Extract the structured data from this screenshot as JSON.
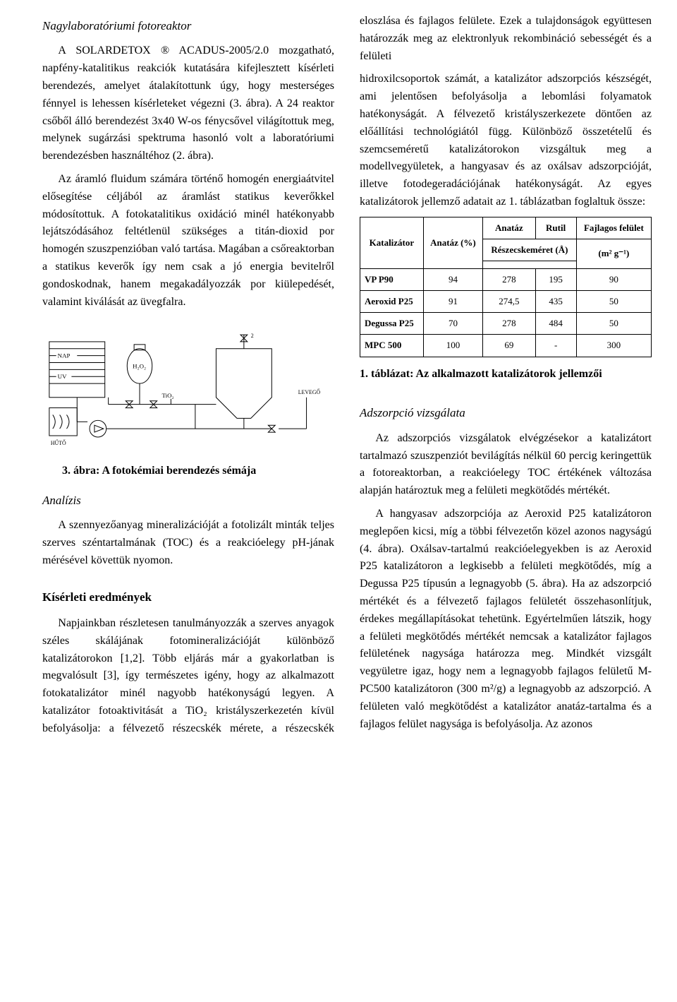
{
  "left": {
    "section1_title": "Nagylaboratóriumi fotoreaktor",
    "para1": "A SOLARDETOX ® ACADUS-2005/2.0 mozgatható, napfény-katalitikus reakciók kutatására kifejlesztett kísérleti berendezés, amelyet átalakítottunk úgy, hogy mesterséges fénnyel is lehessen kísérleteket végezni (3. ábra). A 24 reaktor csőből álló berendezést 3x40 W-os fénycsővel világítottuk meg, melynek sugárzási spektruma hasonló volt a laboratóriumi berendezésben használtéhoz (2. ábra).",
    "para2": "Az áramló fluidum számára történő homogén energiaátvitel elősegítése céljából az áramlást statikus keverőkkel módosítottuk. A fotokatalitikus oxidáció minél hatékonyabb lejátszódásához feltétlenül szükséges a titán-dioxid por homogén szuszpenzióban való tartása. Magában a csőreaktorban a statikus keverők így nem csak a jó energia bevitelről gondoskodnak, hanem megakadályozzák por kiülepedését, valamint kiválását az üvegfalra.",
    "fig3": {
      "labels": {
        "nap": "NAP",
        "uv": "UV",
        "huto": "HŰTŐ",
        "h2o2": "H₂O₂",
        "tio2": "TiO₂",
        "levego": "LEVEGŐ"
      },
      "caption": "3. ábra: A fotokémiai berendezés sémája"
    },
    "analysis_title": "Analízis",
    "analysis_para": "A szennyezőanyag mineralizációját a fotolizált minták teljes szerves széntartalmának (TOC) és a reakcióelegy pH-jának   mérésével követtük nyomon.",
    "results_title": "Kísérleti eredmények",
    "results_para": "Napjainkban részletesen tanulmányozzák a szerves anyagok széles skálájának fotomineralizációját különböző katalizátorokon [1,2]. Több eljárás már a gyakorlatban is megvalósult [3], így természetes igény, hogy az alkalmazott fotokatalizátor minél nagyobb hatékonyságú legyen. A katalizátor fotoaktivitását a TiO₂ kristályszerkezetén kívül befolyásolja: a félvezető részecskék mérete, a részecskék eloszlása és fajlagos felülete. Ezek a tulajdonságok együttesen határozzák meg az elektronlyuk rekombináció sebességét és a felületi"
  },
  "right": {
    "top_para": "hidroxilcsoportok számát, a katalizátor adszorpciós készségét, ami jelentősen befolyásolja a lebomlási folyamatok hatékonyságát. A félvezető kristályszerkezete döntően az előállítási technológiától függ. Különböző összetételű és szemcseméretű katalizátorokon vizsgáltuk meg a modellvegyületek, a hangyasav és az oxálsav adszorpcióját, illetve fotodegeradációjának hatékonyságát. Az egyes katalizátorok jellemző adatait az 1. táblázatban foglaltuk össze:",
    "table": {
      "headers": {
        "cat": "Katalizátor",
        "anataz_pct": "Anatáz (%)",
        "anataz": "Anatáz",
        "rutil": "Rutil",
        "size": "Részecskeméret (Å)",
        "felulet": "Fajlagos felület",
        "area_unit": "(m² g⁻¹)"
      },
      "rows": [
        {
          "name": "VP P90",
          "pct": "94",
          "an": "278",
          "ru": "195",
          "sa": "90"
        },
        {
          "name": "Aeroxid P25",
          "pct": "91",
          "an": "274,5",
          "ru": "435",
          "sa": "50"
        },
        {
          "name": "Degussa P25",
          "pct": "70",
          "an": "278",
          "ru": "484",
          "sa": "50"
        },
        {
          "name": "MPC 500",
          "pct": "100",
          "an": "69",
          "ru": "-",
          "sa": "300"
        }
      ],
      "caption": "1. táblázat: Az alkalmazott katalizátorok jellemzői"
    },
    "ads_title": "Adszorpció vizsgálata",
    "ads_p1": "Az adszorpciós vizsgálatok elvégzésekor a katalizátort tartalmazó szuszpenziót bevilágítás nélkül 60 percig keringettük a fotoreaktorban, a reakcióelegy TOC értékének változása alapján határoztuk meg a felületi megkötődés mértékét.",
    "ads_p2": "A hangyasav adszorpciója az Aeroxid P25 katalizátoron meglepően kicsi, míg a többi félvezetőn közel azonos nagyságú (4. ábra). Oxálsav-tartalmú reakcióelegyekben is az Aeroxid P25 katalizátoron a legkisebb a felületi megkötődés, míg a Degussa P25 típusún a legnagyobb (5. ábra). Ha az adszorpció mértékét és a félvezető fajlagos felületét összehasonlítjuk, érdekes megállapításokat tehetünk. Egyértelműen látszik, hogy a felületi megkötődés mértékét nemcsak a katalizátor fajlagos felületének nagysága határozza meg. Mindkét vizsgált vegyületre igaz, hogy nem a legnagyobb fajlagos felületű M-PC500 katalizátoron (300 m²/g) a legnagyobb az adszorpció. A felületen való megkötődést a katalizátor anatáz-tartalma és a fajlagos felület nagysága is befolyásolja. Az azonos"
  },
  "colors": {
    "text": "#000000",
    "background": "#ffffff",
    "border": "#000000",
    "diagram_stroke": "#000000"
  }
}
